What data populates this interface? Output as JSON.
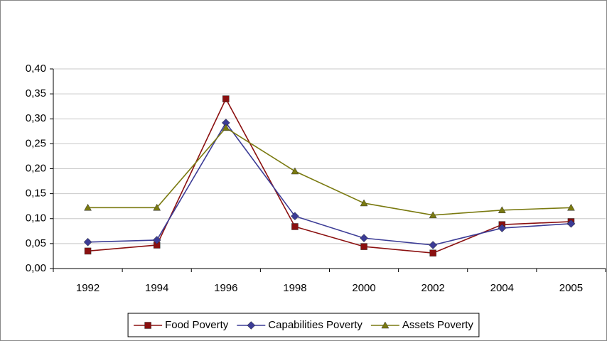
{
  "chart_data": {
    "type": "line",
    "categories": [
      "1992",
      "1994",
      "1996",
      "1998",
      "2000",
      "2002",
      "2004",
      "2005"
    ],
    "series": [
      {
        "name": "Food Poverty",
        "color": "#8b1010",
        "marker": "square",
        "values": [
          0.035,
          0.047,
          0.34,
          0.084,
          0.044,
          0.031,
          0.088,
          0.094
        ]
      },
      {
        "name": "Capabilities Poverty",
        "color": "#3c3c96",
        "marker": "diamond",
        "values": [
          0.053,
          0.057,
          0.292,
          0.105,
          0.061,
          0.047,
          0.081,
          0.09
        ]
      },
      {
        "name": "Assets Poverty",
        "color": "#7a7a10",
        "marker": "triangle",
        "values": [
          0.122,
          0.122,
          0.282,
          0.195,
          0.131,
          0.107,
          0.117,
          0.122
        ]
      }
    ],
    "ylim": [
      0,
      0.4
    ],
    "yticks": [
      {
        "value": 0,
        "label": "0,00"
      },
      {
        "value": 0.05,
        "label": "0,05"
      },
      {
        "value": 0.1,
        "label": "0,10"
      },
      {
        "value": 0.15,
        "label": "0,15"
      },
      {
        "value": 0.2,
        "label": "0,20"
      },
      {
        "value": 0.25,
        "label": "0,25"
      },
      {
        "value": 0.3,
        "label": "0,30"
      },
      {
        "value": 0.35,
        "label": "0,35"
      },
      {
        "value": 0.4,
        "label": "0,40"
      }
    ],
    "grid": true,
    "legend": "bottom"
  }
}
